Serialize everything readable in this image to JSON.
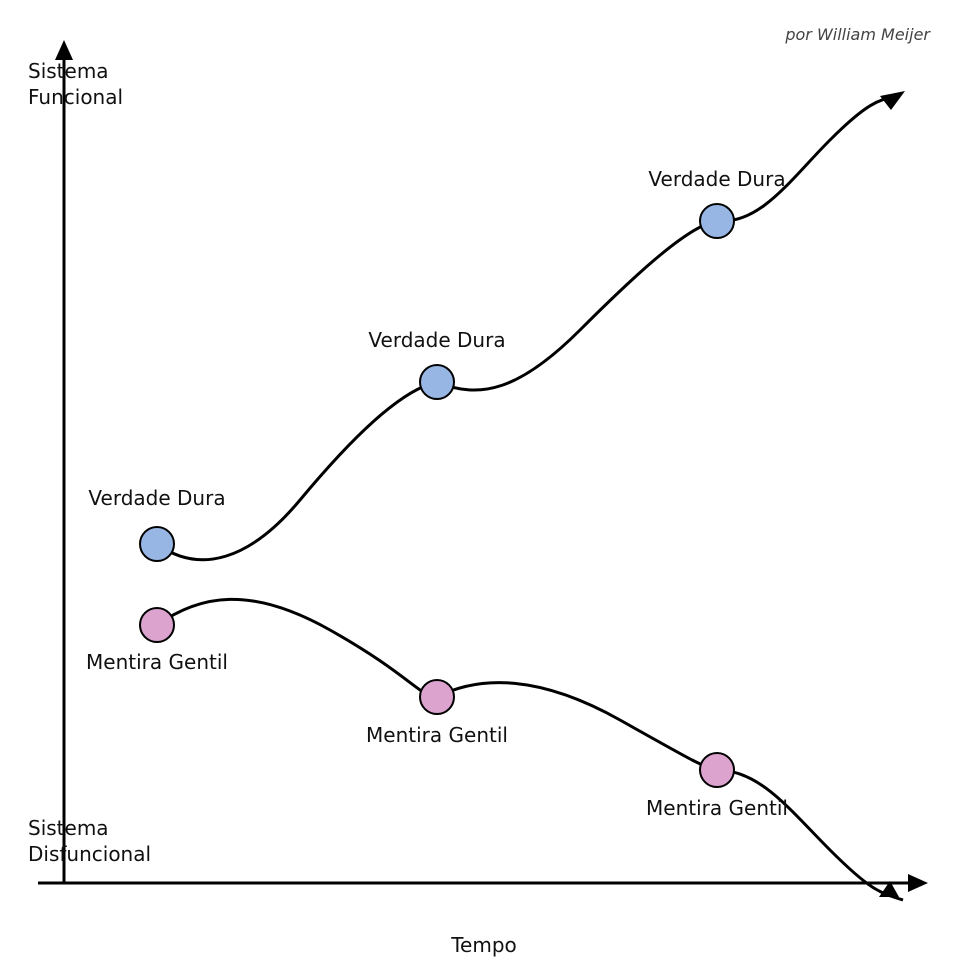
{
  "attribution": "por William Meijer",
  "y_axis": {
    "top": [
      "Sistema",
      "Funcional"
    ],
    "bottom": [
      "Sistema",
      "Disfuncional"
    ]
  },
  "x_axis": {
    "label": "Tempo"
  },
  "upper_path": {
    "nodes": [
      {
        "label": "Verdade Dura"
      },
      {
        "label": "Verdade Dura"
      },
      {
        "label": "Verdade Dura"
      }
    ]
  },
  "lower_path": {
    "nodes": [
      {
        "label": "Mentira Gentil"
      },
      {
        "label": "Mentira Gentil"
      },
      {
        "label": "Mentira Gentil"
      }
    ]
  }
}
